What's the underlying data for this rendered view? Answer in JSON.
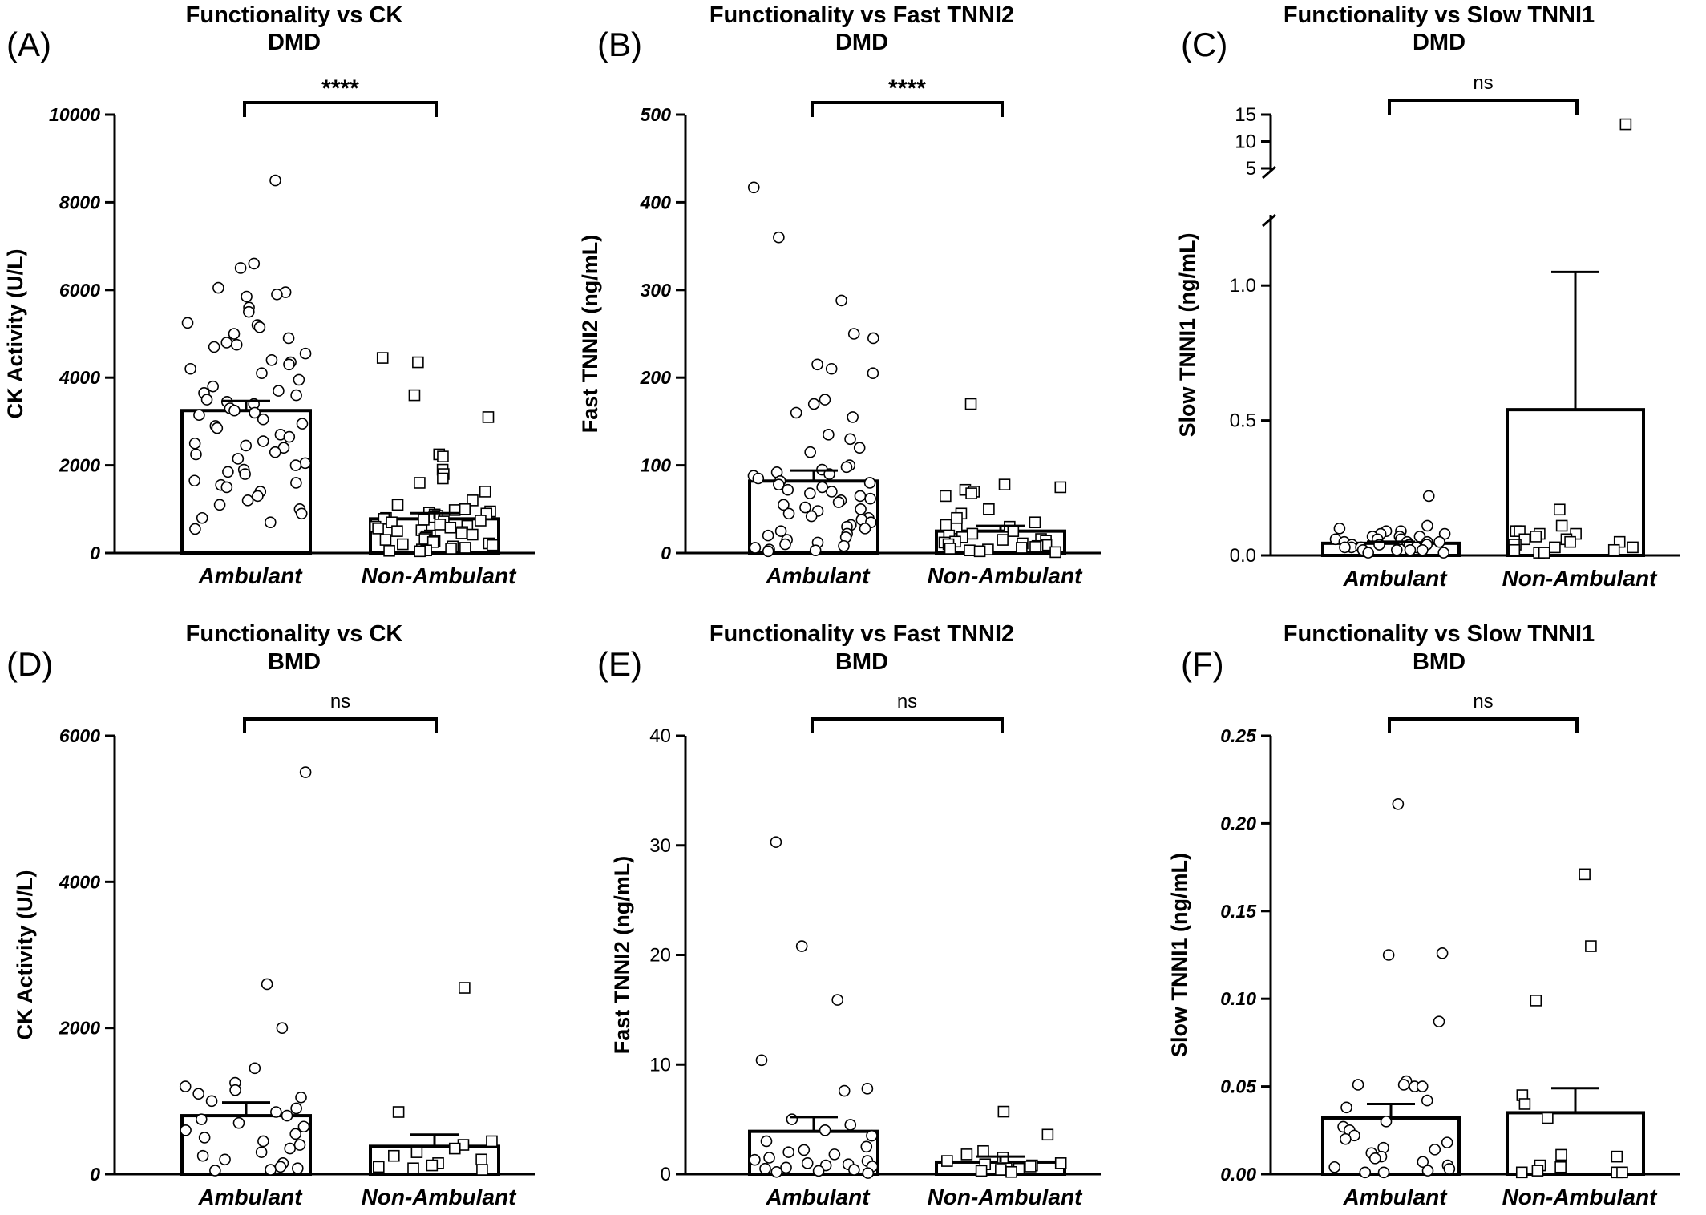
{
  "figure": {
    "panels": [
      {
        "label": "(A)",
        "title": "Functionality vs CK",
        "subtitle": "DMD",
        "significance": "****"
      },
      {
        "label": "(B)",
        "title": "Functionality vs Fast TNNI2",
        "subtitle": "DMD",
        "significance": "****"
      },
      {
        "label": "(C)",
        "title": "Functionality vs Slow TNNI1",
        "subtitle": "DMD",
        "significance": "ns"
      },
      {
        "label": "(D)",
        "title": "Functionality vs CK",
        "subtitle": "BMD",
        "significance": "ns"
      },
      {
        "label": "(E)",
        "title": "Functionality vs Fast TNNI2",
        "subtitle": "BMD",
        "significance": "ns"
      },
      {
        "label": "(F)",
        "title": "Functionality vs Slow TNNI1",
        "subtitle": "BMD",
        "significance": "ns"
      }
    ]
  },
  "chart_data": [
    {
      "type": "bar",
      "title": "Functionality vs CK",
      "subtitle": "DMD",
      "panel_label": "(A)",
      "ylabel": "CK Activity (U/L)",
      "xlabel": "",
      "categories": [
        "Ambulant",
        "Non-Ambulant"
      ],
      "ylim": [
        0,
        10000
      ],
      "yticks": [
        0,
        2000,
        4000,
        6000,
        8000,
        10000
      ],
      "ytick_labels": [
        "0",
        "2000",
        "4000",
        "6000",
        "8000",
        "10000"
      ],
      "ytick_style": "bold-italic",
      "means": [
        3250,
        780
      ],
      "sem": [
        220,
        130
      ],
      "markers": [
        "circle",
        "square"
      ],
      "significance": "****",
      "points": [
        [
          8500,
          6600,
          6500,
          6050,
          5950,
          5900,
          5850,
          5600,
          5500,
          5250,
          5200,
          5150,
          5000,
          4900,
          4800,
          4750,
          4700,
          4550,
          4400,
          4350,
          4300,
          4200,
          4100,
          3950,
          3800,
          3700,
          3650,
          3600,
          3500,
          3450,
          3400,
          3300,
          3250,
          3200,
          3150,
          3050,
          2950,
          2900,
          2850,
          2700,
          2650,
          2550,
          2500,
          2450,
          2400,
          2300,
          2250,
          2150,
          2050,
          2000,
          1900,
          1850,
          1800,
          1650,
          1600,
          1550,
          1500,
          1400,
          1300,
          1200,
          1100,
          1000,
          900,
          800,
          700,
          550
        ],
        [
          4450,
          4350,
          3600,
          3100,
          2250,
          2200,
          1900,
          1800,
          1700,
          1600,
          1400,
          1200,
          1100,
          1000,
          980,
          950,
          920,
          900,
          880,
          850,
          820,
          800,
          780,
          760,
          740,
          720,
          700,
          650,
          620,
          600,
          580,
          560,
          520,
          500,
          480,
          450,
          420,
          400,
          380,
          350,
          320,
          300,
          280,
          250,
          220,
          200,
          180,
          150,
          120,
          100,
          80,
          60,
          50,
          40
        ]
      ]
    },
    {
      "type": "bar",
      "title": "Functionality vs Fast TNNI2",
      "subtitle": "DMD",
      "panel_label": "(B)",
      "ylabel": "Fast TNNI2 (ng/mL)",
      "xlabel": "",
      "categories": [
        "Ambulant",
        "Non-Ambulant"
      ],
      "ylim": [
        0,
        500
      ],
      "yticks": [
        0,
        100,
        200,
        300,
        400,
        500
      ],
      "ytick_labels": [
        "0",
        "100",
        "200",
        "300",
        "400",
        "500"
      ],
      "ytick_style": "bold-italic",
      "means": [
        82,
        25
      ],
      "sem": [
        12,
        6
      ],
      "markers": [
        "circle",
        "square"
      ],
      "significance": "****",
      "points": [
        [
          417,
          360,
          288,
          250,
          245,
          215,
          210,
          205,
          175,
          170,
          160,
          155,
          135,
          130,
          120,
          115,
          100,
          98,
          95,
          92,
          90,
          88,
          85,
          82,
          80,
          78,
          75,
          72,
          70,
          68,
          65,
          62,
          60,
          58,
          55,
          52,
          50,
          48,
          45,
          42,
          40,
          38,
          35,
          32,
          30,
          28,
          25,
          22,
          20,
          18,
          15,
          12,
          10,
          8,
          6,
          4,
          3,
          2
        ],
        [
          170,
          78,
          75,
          72,
          70,
          68,
          65,
          50,
          45,
          40,
          35,
          32,
          30,
          28,
          25,
          22,
          20,
          18,
          16,
          15,
          14,
          13,
          12,
          11,
          10,
          9,
          8,
          7,
          6,
          5,
          4,
          3,
          2,
          1
        ]
      ]
    },
    {
      "type": "bar",
      "title": "Functionality vs Slow TNNI1",
      "subtitle": "DMD",
      "panel_label": "(C)",
      "ylabel": "Slow TNNI1 (ng/mL)",
      "xlabel": "",
      "categories": [
        "Ambulant",
        "Non-Ambulant"
      ],
      "ylim": [
        0,
        15
      ],
      "axis_break": {
        "lower": [
          0,
          1.25
        ],
        "upper": [
          5,
          15
        ]
      },
      "yticks": [
        0,
        0.5,
        1.0,
        5,
        10,
        15
      ],
      "ytick_labels": [
        "0.0",
        "0.5",
        "1.0",
        "5",
        "10",
        "15"
      ],
      "ytick_style": "regular",
      "means": [
        0.045,
        0.54
      ],
      "sem": [
        0.006,
        0.51
      ],
      "markers": [
        "circle",
        "square"
      ],
      "significance": "ns",
      "points": [
        [
          0.22,
          0.11,
          0.1,
          0.09,
          0.09,
          0.08,
          0.08,
          0.07,
          0.07,
          0.07,
          0.06,
          0.06,
          0.06,
          0.05,
          0.05,
          0.05,
          0.05,
          0.04,
          0.04,
          0.04,
          0.04,
          0.03,
          0.03,
          0.03,
          0.03,
          0.02,
          0.02,
          0.02,
          0.02,
          0.01,
          0.01
        ],
        [
          13.2,
          0.17,
          0.11,
          0.09,
          0.09,
          0.08,
          0.08,
          0.07,
          0.06,
          0.06,
          0.05,
          0.05,
          0.04,
          0.04,
          0.03,
          0.03,
          0.02,
          0.02,
          0.01,
          0.01
        ]
      ]
    },
    {
      "type": "bar",
      "title": "Functionality vs CK",
      "subtitle": "BMD",
      "panel_label": "(D)",
      "ylabel": "CK Activity (U/L)",
      "xlabel": "",
      "categories": [
        "Ambulant",
        "Non-Ambulant"
      ],
      "ylim": [
        0,
        6000
      ],
      "yticks": [
        0,
        2000,
        4000,
        6000
      ],
      "ytick_labels": [
        "0",
        "2000",
        "4000",
        "6000"
      ],
      "ytick_style": "bold-italic",
      "means": [
        800,
        380
      ],
      "sem": [
        180,
        160
      ],
      "markers": [
        "circle",
        "square"
      ],
      "significance": "ns",
      "points": [
        [
          5500,
          2600,
          2000,
          1450,
          1250,
          1200,
          1150,
          1100,
          1050,
          1000,
          900,
          850,
          800,
          750,
          700,
          650,
          600,
          550,
          500,
          450,
          400,
          350,
          300,
          250,
          200,
          150,
          100,
          80,
          60,
          50
        ],
        [
          2550,
          850,
          450,
          400,
          350,
          300,
          250,
          200,
          150,
          120,
          100,
          80,
          60
        ]
      ]
    },
    {
      "type": "bar",
      "title": "Functionality vs Fast TNNI2",
      "subtitle": "BMD",
      "panel_label": "(E)",
      "ylabel": "Fast TNNI2 (ng/mL)",
      "xlabel": "",
      "categories": [
        "Ambulant",
        "Non-Ambulant"
      ],
      "ylim": [
        0,
        40
      ],
      "yticks": [
        0,
        10,
        20,
        30,
        40
      ],
      "ytick_labels": [
        "0",
        "10",
        "20",
        "30",
        "40"
      ],
      "ytick_style": "regular",
      "means": [
        3.9,
        1.1
      ],
      "sem": [
        1.3,
        0.5
      ],
      "markers": [
        "circle",
        "square"
      ],
      "significance": "ns",
      "points": [
        [
          30.3,
          20.8,
          15.9,
          10.4,
          7.8,
          7.6,
          5.0,
          4.5,
          4.0,
          3.5,
          3.0,
          2.5,
          2.2,
          2.0,
          1.8,
          1.5,
          1.3,
          1.2,
          1.0,
          0.9,
          0.8,
          0.7,
          0.6,
          0.5,
          0.4,
          0.3,
          0.2,
          0.1
        ],
        [
          5.7,
          3.6,
          2.1,
          1.8,
          1.5,
          1.2,
          1.0,
          0.9,
          0.8,
          0.7,
          0.6,
          0.5,
          0.4,
          0.3,
          0.2
        ]
      ]
    },
    {
      "type": "bar",
      "title": "Functionality vs Slow TNNI1",
      "subtitle": "BMD",
      "panel_label": "(F)",
      "ylabel": "Slow TNNI1 (ng/mL)",
      "xlabel": "",
      "categories": [
        "Ambulant",
        "Non-Ambulant"
      ],
      "ylim": [
        0,
        0.25
      ],
      "yticks": [
        0,
        0.05,
        0.1,
        0.15,
        0.2,
        0.25
      ],
      "ytick_labels": [
        "0.00",
        "0.05",
        "0.10",
        "0.15",
        "0.20",
        "0.25"
      ],
      "ytick_style": "bold-italic",
      "means": [
        0.032,
        0.035
      ],
      "sem": [
        0.008,
        0.014
      ],
      "markers": [
        "circle",
        "square"
      ],
      "significance": "ns",
      "points": [
        [
          0.211,
          0.126,
          0.125,
          0.087,
          0.053,
          0.051,
          0.051,
          0.05,
          0.05,
          0.042,
          0.038,
          0.03,
          0.027,
          0.025,
          0.022,
          0.02,
          0.018,
          0.015,
          0.014,
          0.012,
          0.01,
          0.009,
          0.007,
          0.005,
          0.004,
          0.003,
          0.002,
          0.001,
          0.001
        ],
        [
          0.171,
          0.13,
          0.099,
          0.045,
          0.04,
          0.032,
          0.011,
          0.01,
          0.005,
          0.004,
          0.002,
          0.001,
          0.001,
          0.001
        ]
      ]
    }
  ]
}
